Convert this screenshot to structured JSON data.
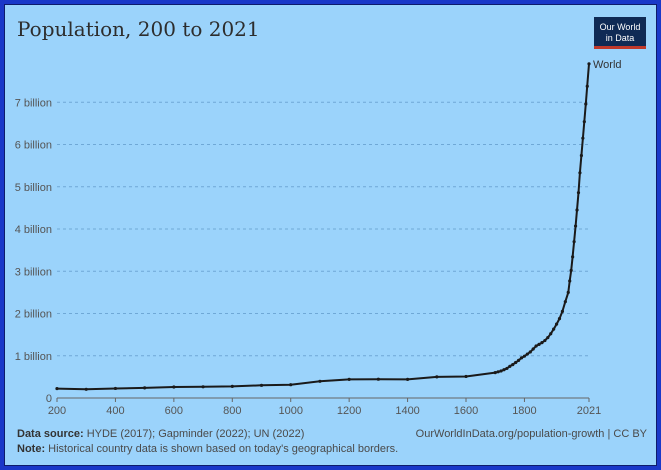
{
  "logo": {
    "line1": "Our World",
    "line2": "in Data"
  },
  "footer": {
    "source_label": "Data source:",
    "source_text": "HYDE (2017); Gapminder (2022); UN (2022)",
    "url": "OurWorldInData.org/population-growth | CC BY",
    "note_label": "Note:",
    "note_text": "Historical country data is shown based on today's geographical borders."
  },
  "colors": {
    "background": "#9bd3fb",
    "line": "#1a1a1a",
    "grid": "#6fa8d6",
    "frame": "#1a38c8"
  },
  "chart_data": {
    "type": "line",
    "title": "Population, 200 to 2021",
    "xlabel": "",
    "ylabel": "",
    "xlim": [
      200,
      2021
    ],
    "ylim": [
      0,
      8000000000
    ],
    "x_ticks": [
      {
        "value": 200,
        "label": "200"
      },
      {
        "value": 400,
        "label": "400"
      },
      {
        "value": 600,
        "label": "600"
      },
      {
        "value": 800,
        "label": "800"
      },
      {
        "value": 1000,
        "label": "1000"
      },
      {
        "value": 1200,
        "label": "1200"
      },
      {
        "value": 1400,
        "label": "1400"
      },
      {
        "value": 1600,
        "label": "1600"
      },
      {
        "value": 1800,
        "label": "1800"
      },
      {
        "value": 2021,
        "label": "2021"
      }
    ],
    "y_ticks": [
      {
        "value": 0,
        "label": "0"
      },
      {
        "value": 1000000000,
        "label": "1 billion"
      },
      {
        "value": 2000000000,
        "label": "2 billion"
      },
      {
        "value": 3000000000,
        "label": "3 billion"
      },
      {
        "value": 4000000000,
        "label": "4 billion"
      },
      {
        "value": 5000000000,
        "label": "5 billion"
      },
      {
        "value": 6000000000,
        "label": "6 billion"
      },
      {
        "value": 7000000000,
        "label": "7 billion"
      }
    ],
    "series": [
      {
        "name": "World",
        "x": [
          200,
          300,
          400,
          500,
          600,
          700,
          800,
          900,
          1000,
          1100,
          1200,
          1300,
          1400,
          1500,
          1600,
          1700,
          1710,
          1720,
          1730,
          1740,
          1750,
          1760,
          1770,
          1780,
          1790,
          1800,
          1810,
          1820,
          1830,
          1840,
          1850,
          1860,
          1870,
          1880,
          1890,
          1900,
          1910,
          1920,
          1930,
          1940,
          1950,
          1955,
          1960,
          1965,
          1970,
          1975,
          1980,
          1985,
          1990,
          1995,
          2000,
          2005,
          2010,
          2015,
          2021
        ],
        "values": [
          223000000,
          206000000,
          226000000,
          240000000,
          260000000,
          265000000,
          275000000,
          300000000,
          315000000,
          395000000,
          440000000,
          445000000,
          440000000,
          500000000,
          510000000,
          600000000,
          620000000,
          640000000,
          670000000,
          700000000,
          750000000,
          790000000,
          840000000,
          890000000,
          950000000,
          990000000,
          1040000000,
          1090000000,
          1160000000,
          1230000000,
          1270000000,
          1310000000,
          1360000000,
          1430000000,
          1520000000,
          1630000000,
          1750000000,
          1880000000,
          2050000000,
          2280000000,
          2500000000,
          2770000000,
          3020000000,
          3340000000,
          3700000000,
          4070000000,
          4450000000,
          4860000000,
          5330000000,
          5740000000,
          6150000000,
          6540000000,
          6960000000,
          7380000000,
          7910000000
        ]
      }
    ]
  }
}
